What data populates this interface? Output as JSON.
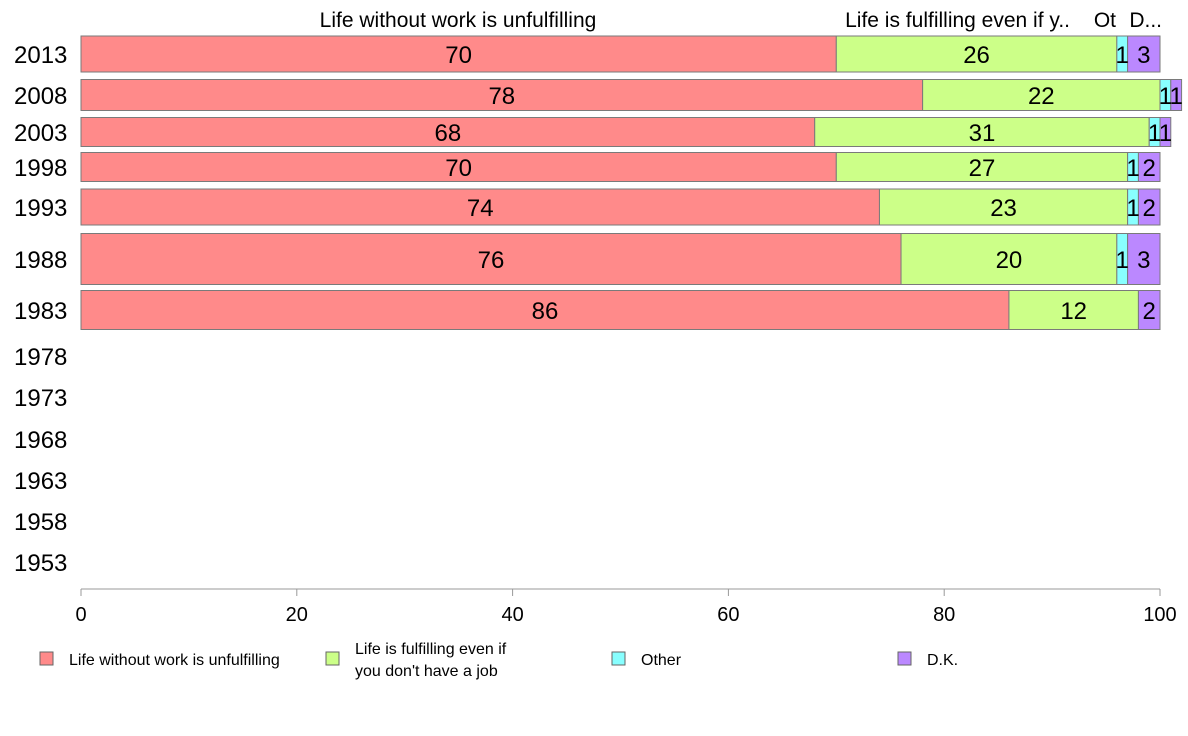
{
  "chart_data": {
    "type": "bar",
    "orientation": "horizontal",
    "stacked": true,
    "categories": [
      "2013",
      "2008",
      "2003",
      "1998",
      "1993",
      "1988",
      "1983",
      "1978",
      "1973",
      "1968",
      "1963",
      "1958",
      "1953"
    ],
    "series": [
      {
        "name": "Life without work is unfulfilling",
        "color": "#ff8a8a",
        "values": [
          70,
          78,
          68,
          70,
          74,
          76,
          86,
          null,
          null,
          null,
          null,
          null,
          null
        ]
      },
      {
        "name": "Life is fulfilling even if you don't have a job",
        "color": "#ccff88",
        "values": [
          26,
          22,
          31,
          27,
          23,
          20,
          12,
          null,
          null,
          null,
          null,
          null,
          null
        ]
      },
      {
        "name": "Other",
        "color": "#88ffff",
        "values": [
          1,
          1,
          1,
          1,
          1,
          1,
          0,
          null,
          null,
          null,
          null,
          null,
          null
        ]
      },
      {
        "name": "D.K.",
        "color": "#bb88ff",
        "values": [
          3,
          1,
          1,
          2,
          2,
          3,
          2,
          null,
          null,
          null,
          null,
          null,
          null
        ]
      }
    ],
    "segment_labels": [
      [
        "70",
        "26",
        "1",
        "3"
      ],
      [
        "78",
        "22",
        "1",
        "1"
      ],
      [
        "68",
        "31",
        "1",
        "1"
      ],
      [
        "70",
        "27",
        "1",
        "2"
      ],
      [
        "74",
        "23",
        "1",
        "2"
      ],
      [
        "76",
        "20",
        "1",
        "3"
      ],
      [
        "86",
        "12",
        "",
        "2"
      ]
    ],
    "column_headers": [
      "Life without work is unfulfilling",
      "Life is fulfilling even if y..",
      "Ot",
      "D..."
    ],
    "legend": {
      "items": [
        [
          "Life without work is unfulfilling"
        ],
        [
          "Life is fulfilling even if",
          "you don't have a job"
        ],
        [
          "Other"
        ],
        [
          "D.K."
        ]
      ],
      "position": "bottom"
    },
    "xlim": [
      0,
      100
    ],
    "xticks": [
      "0",
      "20",
      "40",
      "60",
      "80",
      "100"
    ],
    "grid": false,
    "title": "",
    "xlabel": "",
    "ylabel": ""
  }
}
